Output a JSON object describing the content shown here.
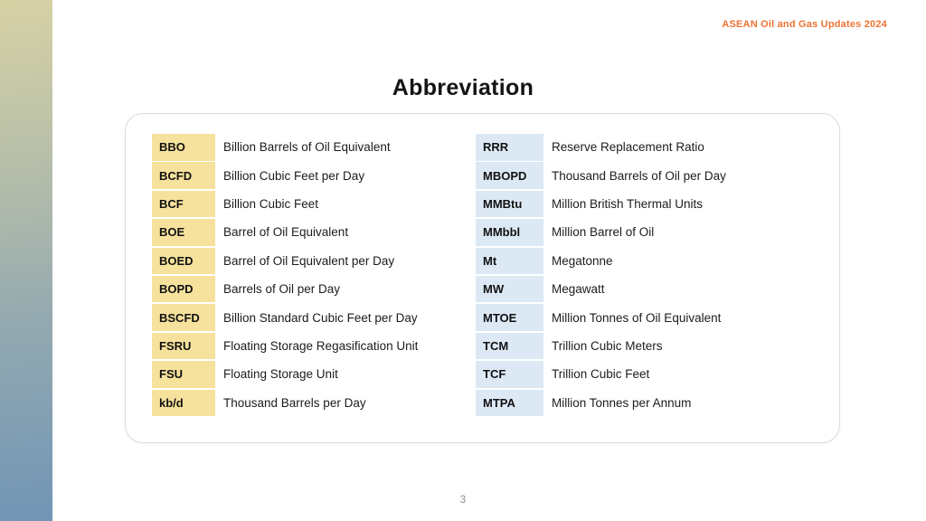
{
  "slide": {
    "header": "ASEAN Oil and Gas Updates 2024",
    "title": "Abbreviation",
    "page_number": "3"
  },
  "colors": {
    "header_accent": "#ec7434",
    "abbr_badge_yellow": "#f6e29c",
    "abbr_badge_blue": "#dce9f5",
    "sidebar_gradient_top": "#d7d2a5",
    "sidebar_gradient_bottom": "#7195b6",
    "card_border": "#dbdbdb",
    "page_number_gray": "#8c8c8c"
  },
  "abbreviations": {
    "left_column": [
      {
        "abbr": "BBO",
        "meaning": "Billion Barrels of Oil Equivalent"
      },
      {
        "abbr": "BCFD",
        "meaning": "Billion Cubic Feet per Day"
      },
      {
        "abbr": "BCF",
        "meaning": "Billion Cubic Feet"
      },
      {
        "abbr": "BOE",
        "meaning": "Barrel of Oil Equivalent"
      },
      {
        "abbr": "BOED",
        "meaning": "Barrel of Oil Equivalent per Day"
      },
      {
        "abbr": "BOPD",
        "meaning": "Barrels of Oil per Day"
      },
      {
        "abbr": "BSCFD",
        "meaning": "Billion Standard Cubic Feet per Day"
      },
      {
        "abbr": "FSRU",
        "meaning": "Floating Storage Regasification Unit"
      },
      {
        "abbr": "FSU",
        "meaning": "Floating Storage Unit"
      },
      {
        "abbr": "kb/d",
        "meaning": "Thousand Barrels per Day"
      }
    ],
    "right_column": [
      {
        "abbr": "RRR",
        "meaning": "Reserve Replacement Ratio"
      },
      {
        "abbr": "MBOPD",
        "meaning": "Thousand Barrels of Oil per Day"
      },
      {
        "abbr": "MMBtu",
        "meaning": "Million British Thermal Units"
      },
      {
        "abbr": "MMbbl",
        "meaning": "Million Barrel of Oil"
      },
      {
        "abbr": "Mt",
        "meaning": "Megatonne"
      },
      {
        "abbr": "MW",
        "meaning": "Megawatt"
      },
      {
        "abbr": "MTOE",
        "meaning": "Million Tonnes of Oil Equivalent"
      },
      {
        "abbr": "TCM",
        "meaning": "Trillion Cubic Meters"
      },
      {
        "abbr": "TCF",
        "meaning": "Trillion Cubic Feet"
      },
      {
        "abbr": "MTPA",
        "meaning": "Million Tonnes per Annum"
      }
    ]
  }
}
